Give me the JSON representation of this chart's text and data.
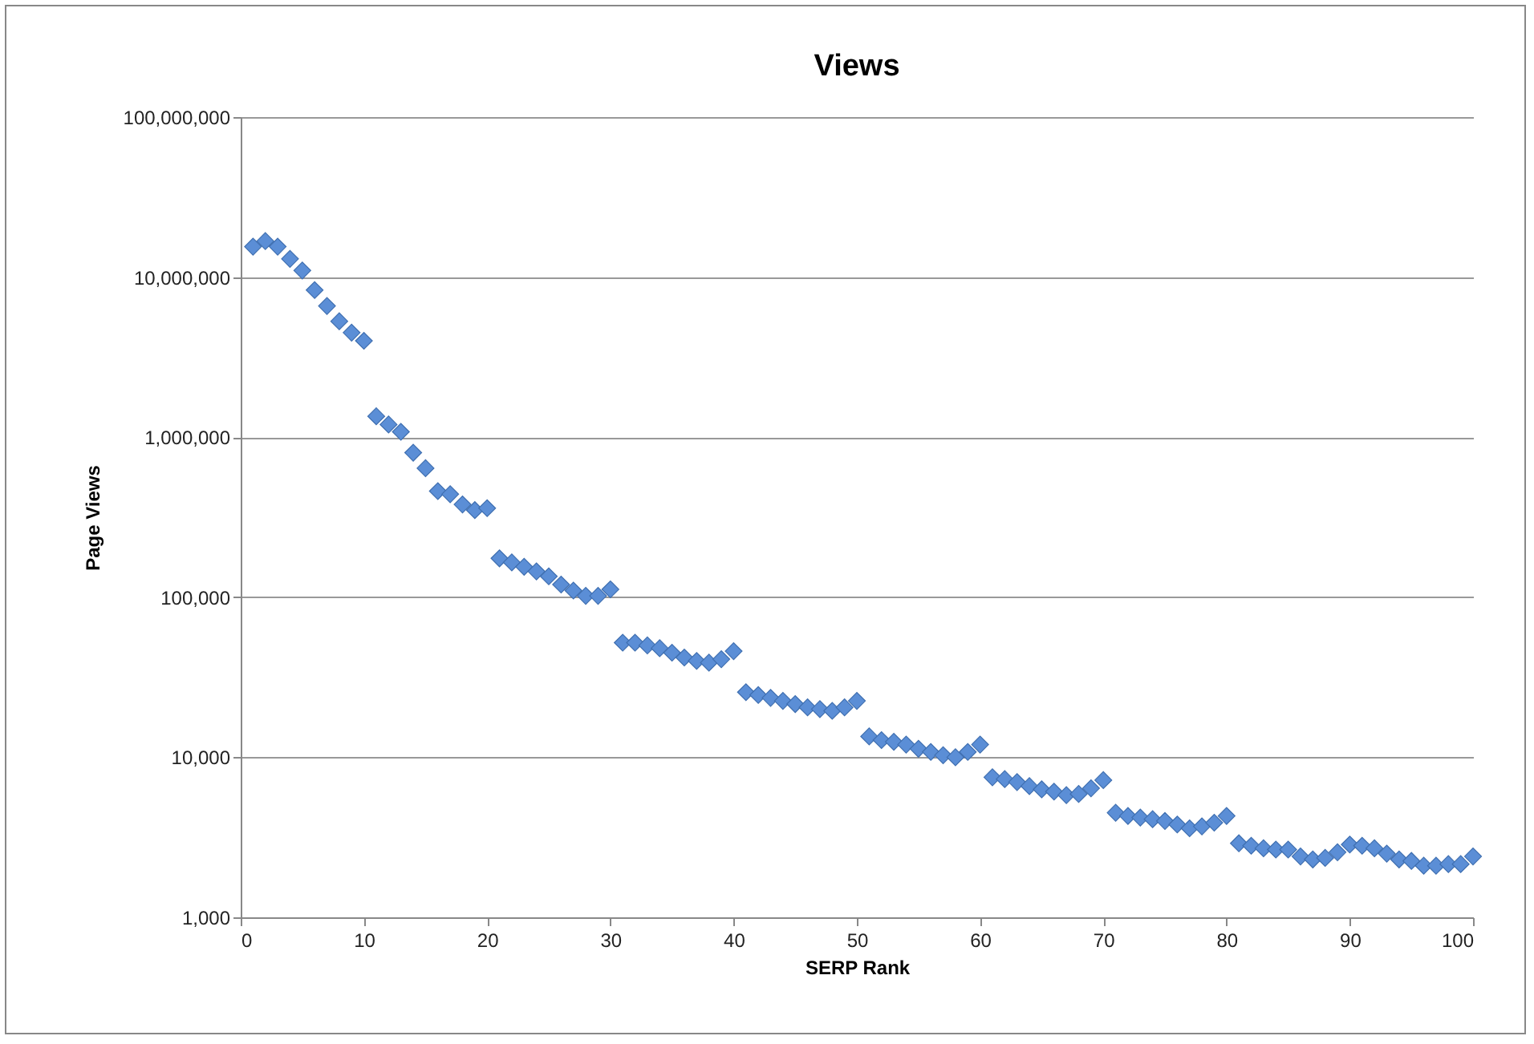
{
  "chart_data": {
    "type": "scatter",
    "title": "Views",
    "xlabel": "SERP Rank",
    "ylabel": "Page Views",
    "x": [
      1,
      2,
      3,
      4,
      5,
      6,
      7,
      8,
      9,
      10,
      11,
      12,
      13,
      14,
      15,
      16,
      17,
      18,
      19,
      20,
      21,
      22,
      23,
      24,
      25,
      26,
      27,
      28,
      29,
      30,
      31,
      32,
      33,
      34,
      35,
      36,
      37,
      38,
      39,
      40,
      41,
      42,
      43,
      44,
      45,
      46,
      47,
      48,
      49,
      50,
      51,
      52,
      53,
      54,
      55,
      56,
      57,
      58,
      59,
      60,
      61,
      62,
      63,
      64,
      65,
      66,
      67,
      68,
      69,
      70,
      71,
      72,
      73,
      74,
      75,
      76,
      77,
      78,
      79,
      80,
      81,
      82,
      83,
      84,
      85,
      86,
      87,
      88,
      89,
      90,
      91,
      92,
      93,
      94,
      95,
      96,
      97,
      98,
      99,
      100
    ],
    "series": [
      {
        "color": "#5b8ed6",
        "values": [
          15500000,
          16800000,
          15500000,
          13000000,
          11000000,
          8300000,
          6600000,
          5300000,
          4500000,
          4000000,
          1350000,
          1200000,
          1080000,
          800000,
          640000,
          460000,
          440000,
          380000,
          350000,
          360000,
          175000,
          165000,
          155000,
          145000,
          135000,
          120000,
          110000,
          102000,
          102000,
          112000,
          52000,
          52000,
          50000,
          48000,
          45000,
          42000,
          40000,
          39000,
          41000,
          46000,
          25500,
          24500,
          23500,
          22500,
          21500,
          20500,
          20000,
          19500,
          20500,
          22500,
          13500,
          12800,
          12500,
          12000,
          11300,
          10800,
          10300,
          10000,
          10800,
          12000,
          7500,
          7300,
          7000,
          6600,
          6300,
          6100,
          5800,
          5900,
          6400,
          7200,
          4500,
          4300,
          4200,
          4100,
          4000,
          3800,
          3600,
          3700,
          3900,
          4300,
          2900,
          2800,
          2700,
          2650,
          2650,
          2400,
          2300,
          2350,
          2550,
          2850,
          2800,
          2700,
          2500,
          2300,
          2250,
          2100,
          2100,
          2150,
          2150,
          2400
        ]
      }
    ],
    "xlim": [
      0,
      100
    ],
    "xticks": [
      0,
      10,
      20,
      30,
      40,
      50,
      60,
      70,
      80,
      90,
      100
    ],
    "ylim": [
      1000,
      100000000
    ],
    "yticks": [
      {
        "value": 1000,
        "label": "1,000"
      },
      {
        "value": 10000,
        "label": "10,000"
      },
      {
        "value": 100000,
        "label": "100,000"
      },
      {
        "value": 1000000,
        "label": "1,000,000"
      },
      {
        "value": 10000000,
        "label": "10,000,000"
      },
      {
        "value": 100000000,
        "label": "100,000,000"
      }
    ],
    "log": "y",
    "grid": "y",
    "marker": "diamond"
  }
}
